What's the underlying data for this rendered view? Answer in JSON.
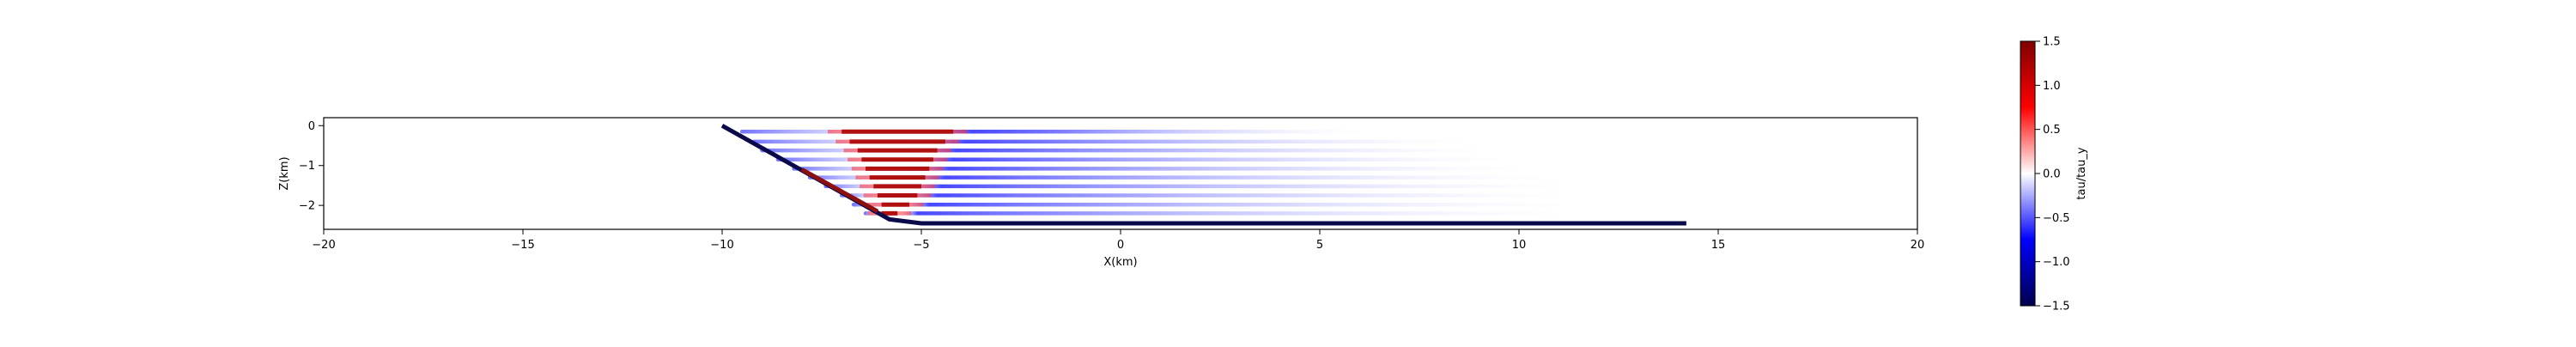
{
  "chart_data": {
    "type": "heatmap",
    "title": "",
    "xlabel": "X(km)",
    "ylabel": "Z(km)",
    "xlim": [
      -20,
      20
    ],
    "ylim": [
      -2.6,
      0.2
    ],
    "x_ticks": [
      -20,
      -15,
      -10,
      -5,
      0,
      5,
      10,
      15,
      20
    ],
    "y_ticks": [
      0,
      -1,
      -2
    ],
    "colormap": "seismic",
    "colorbar": {
      "label": "tau/tau_y",
      "range": [
        -1.5,
        1.5
      ],
      "ticks": [
        1.5,
        1.0,
        0.5,
        0.0,
        -0.5,
        -1.0,
        -1.5
      ],
      "tick_labels": [
        "1.5",
        "1.0",
        "0.5",
        "0.0",
        "−0.5",
        "−1.0",
        "−1.5"
      ]
    },
    "fault_trace": {
      "color": "#0a0a4a",
      "points": [
        [
          -10.0,
          0.0
        ],
        [
          -5.8,
          -2.35
        ],
        [
          -5.0,
          -2.45
        ],
        [
          14.2,
          -2.45
        ]
      ]
    },
    "fault_segment_stress": {
      "color": "#8b1010",
      "points": [
        [
          -8.0,
          -1.1
        ],
        [
          -6.1,
          -2.15
        ]
      ]
    },
    "stress_layers": [
      {
        "z": -0.15,
        "x_start": -9.5,
        "x_end": 6.0,
        "red": [
          -7.0,
          -4.2
        ]
      },
      {
        "z": -0.4,
        "x_start": -9.2,
        "x_end": 8.5,
        "red": [
          -6.8,
          -4.4
        ]
      },
      {
        "z": -0.62,
        "x_start": -9.0,
        "x_end": 9.0,
        "red": [
          -6.6,
          -4.6
        ]
      },
      {
        "z": -0.85,
        "x_start": -8.6,
        "x_end": 9.5,
        "red": [
          -6.5,
          -4.7
        ]
      },
      {
        "z": -1.08,
        "x_start": -8.2,
        "x_end": 10.0,
        "red": [
          -6.4,
          -4.8
        ]
      },
      {
        "z": -1.3,
        "x_start": -7.8,
        "x_end": 10.5,
        "red": [
          -6.3,
          -4.9
        ]
      },
      {
        "z": -1.52,
        "x_start": -7.4,
        "x_end": 11.0,
        "red": [
          -6.2,
          -5.0
        ]
      },
      {
        "z": -1.75,
        "x_start": -7.0,
        "x_end": 11.0,
        "red": [
          -6.1,
          -5.1
        ]
      },
      {
        "z": -1.98,
        "x_start": -6.7,
        "x_end": 11.0,
        "red": [
          -6.0,
          -5.3
        ]
      },
      {
        "z": -2.2,
        "x_start": -6.4,
        "x_end": 11.0,
        "red": [
          -6.0,
          -5.6
        ]
      }
    ]
  }
}
